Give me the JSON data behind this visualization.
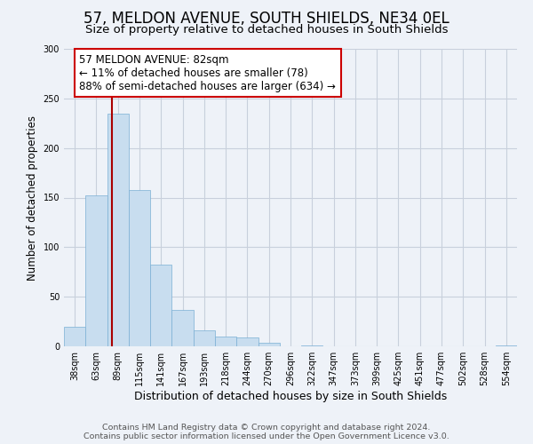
{
  "title": "57, MELDON AVENUE, SOUTH SHIELDS, NE34 0EL",
  "subtitle": "Size of property relative to detached houses in South Shields",
  "xlabel": "Distribution of detached houses by size in South Shields",
  "ylabel": "Number of detached properties",
  "footer_lines": [
    "Contains HM Land Registry data © Crown copyright and database right 2024.",
    "Contains public sector information licensed under the Open Government Licence v3.0."
  ],
  "bin_labels": [
    "38sqm",
    "63sqm",
    "89sqm",
    "115sqm",
    "141sqm",
    "167sqm",
    "193sqm",
    "218sqm",
    "244sqm",
    "270sqm",
    "296sqm",
    "322sqm",
    "347sqm",
    "373sqm",
    "399sqm",
    "425sqm",
    "451sqm",
    "477sqm",
    "502sqm",
    "528sqm",
    "554sqm"
  ],
  "bar_values": [
    20,
    152,
    235,
    158,
    82,
    37,
    16,
    10,
    9,
    4,
    0,
    1,
    0,
    0,
    0,
    0,
    0,
    0,
    0,
    0,
    1
  ],
  "bar_color": "#c8ddef",
  "bar_edge_color": "#7aafd4",
  "marker_line_color": "#aa0000",
  "annotation_text": "57 MELDON AVENUE: 82sqm\n← 11% of detached houses are smaller (78)\n88% of semi-detached houses are larger (634) →",
  "annotation_box_color": "#ffffff",
  "annotation_box_edge_color": "#cc0000",
  "ylim": [
    0,
    300
  ],
  "yticks": [
    0,
    50,
    100,
    150,
    200,
    250,
    300
  ],
  "bg_color": "#eef2f8",
  "plot_bg_color": "#eef2f8",
  "grid_color": "#c8d0dc",
  "title_fontsize": 12,
  "subtitle_fontsize": 9.5,
  "xlabel_fontsize": 9,
  "ylabel_fontsize": 8.5,
  "footer_fontsize": 6.8,
  "annotation_fontsize": 8.5,
  "tick_fontsize": 7
}
